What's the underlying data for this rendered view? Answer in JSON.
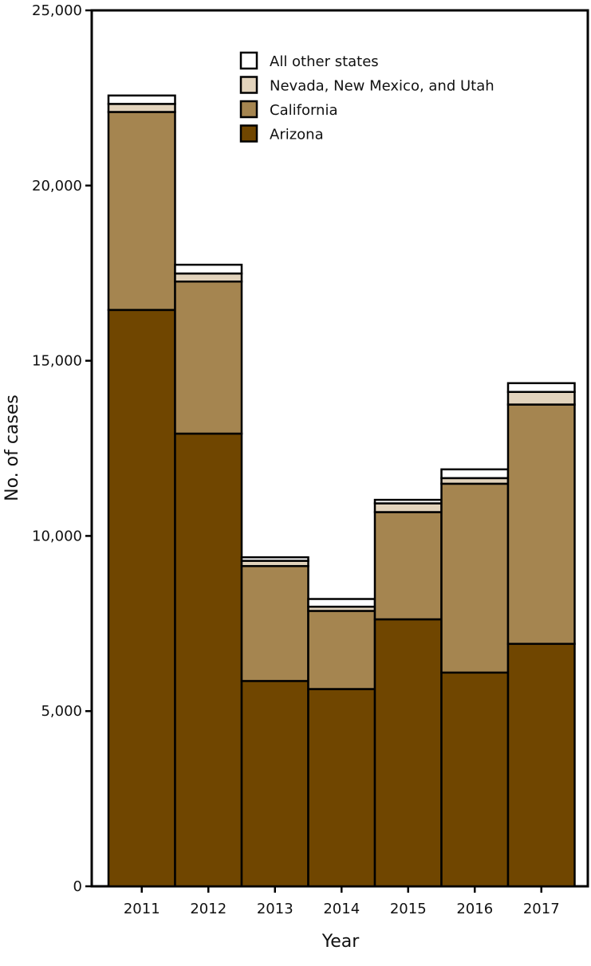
{
  "chart_data": {
    "type": "bar",
    "stacked": true,
    "categories": [
      "2011",
      "2012",
      "2013",
      "2014",
      "2015",
      "2016",
      "2017"
    ],
    "series": [
      {
        "name": "Arizona",
        "color": "#704600",
        "values": [
          16450,
          12920,
          5860,
          5630,
          7620,
          6100,
          6920
        ]
      },
      {
        "name": "California",
        "color": "#a58550",
        "values": [
          5650,
          4340,
          3280,
          2230,
          3060,
          5390,
          6830
        ]
      },
      {
        "name": "Nevada, New Mexico, and Utah",
        "color": "#e2d3bc",
        "values": [
          230,
          230,
          150,
          120,
          250,
          160,
          360
        ]
      },
      {
        "name": "All other states",
        "color": "#ffffff",
        "values": [
          240,
          250,
          100,
          220,
          100,
          250,
          250
        ]
      }
    ],
    "legend_order": [
      "All other states",
      "Nevada, New Mexico, and Utah",
      "California",
      "Arizona"
    ],
    "legend_position": "top-right",
    "xlabel": "Year",
    "ylabel": "No. of cases",
    "ylim": [
      0,
      25000
    ],
    "yticks": [
      0,
      5000,
      10000,
      15000,
      20000,
      25000
    ],
    "ytick_labels": [
      "0",
      "5,000",
      "10,000",
      "15,000",
      "20,000",
      "25,000"
    ],
    "grid": false
  }
}
